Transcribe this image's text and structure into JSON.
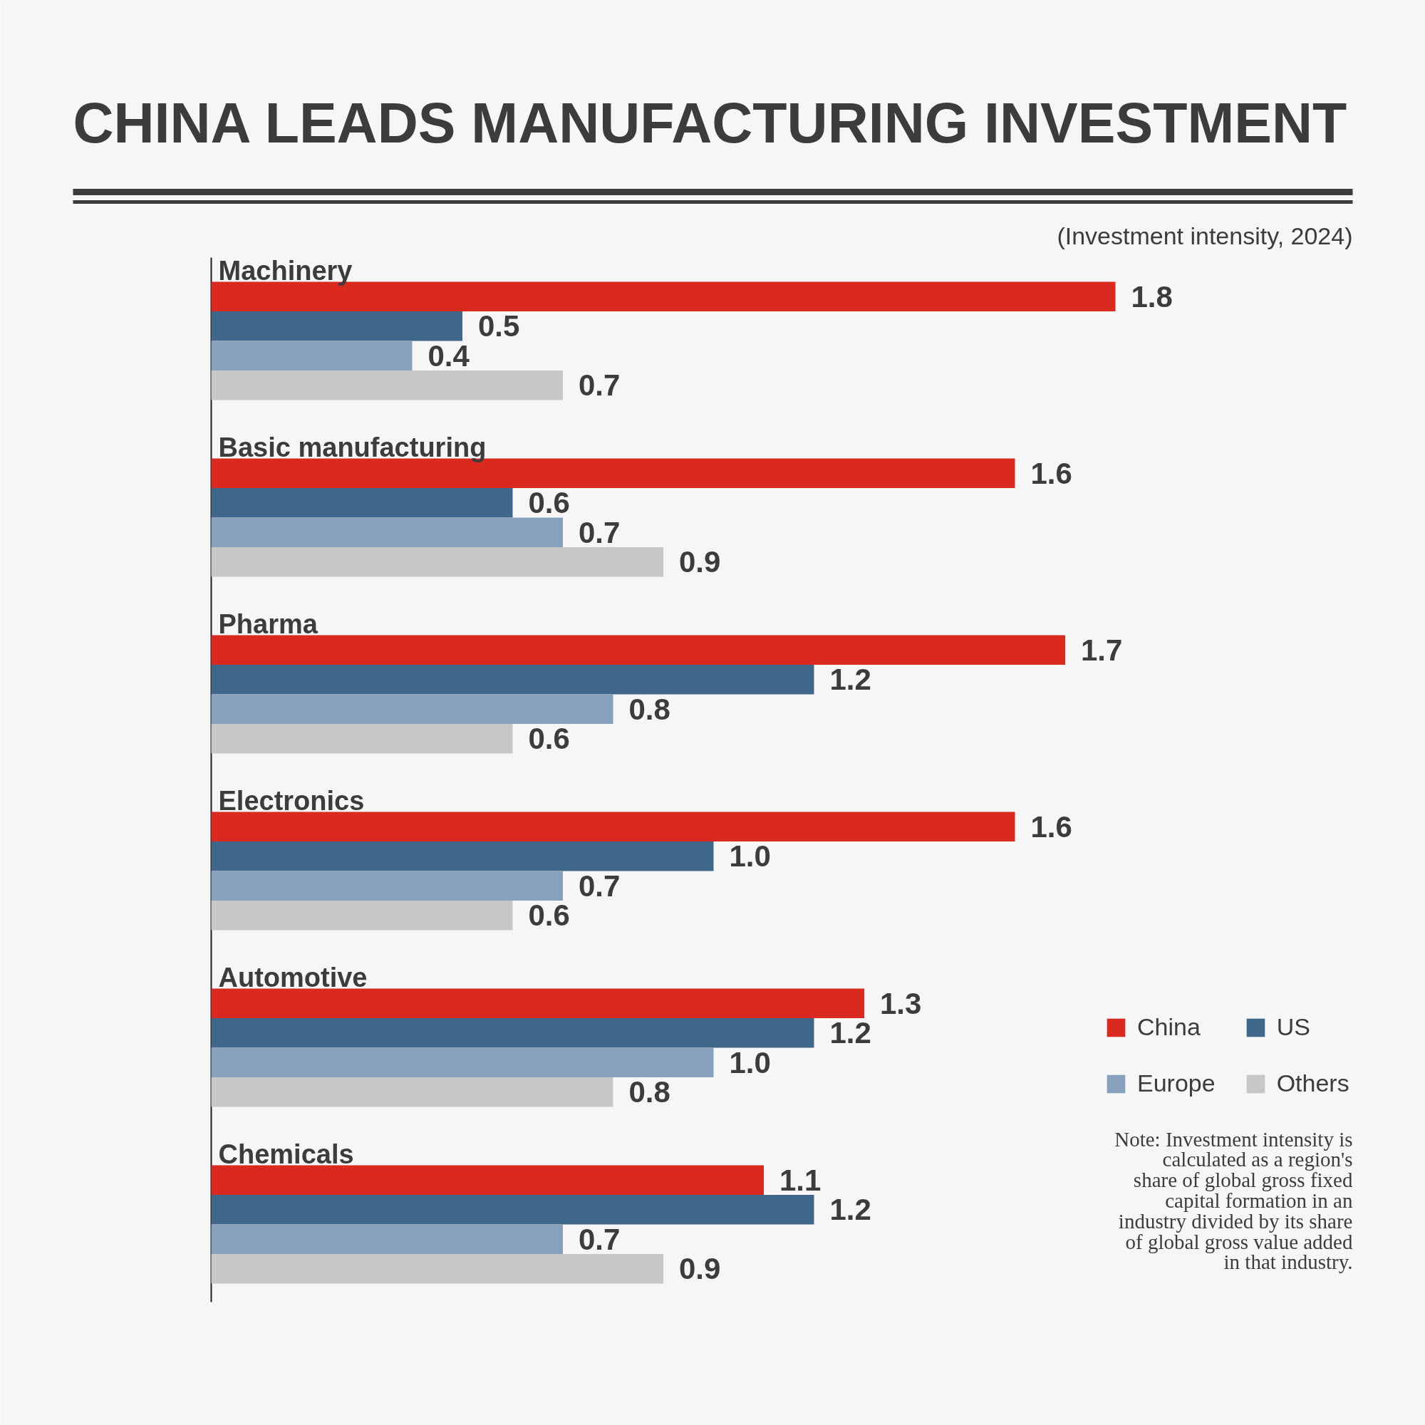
{
  "chart_data": {
    "type": "bar",
    "orientation": "horizontal",
    "title": "CHINA LEADS MANUFACTURING INVESTMENT",
    "subtitle": "(Investment intensity, 2024)",
    "categories": [
      "Machinery",
      "Basic manufacturing",
      "Pharma",
      "Electronics",
      "Automotive",
      "Chemicals"
    ],
    "series": [
      {
        "name": "China",
        "color": "#da291f",
        "values": [
          1.8,
          1.6,
          1.7,
          1.6,
          1.3,
          1.1
        ],
        "value_labels": [
          "1.8",
          "1.6",
          "1.7",
          "1.6",
          "1.3",
          "1.1"
        ]
      },
      {
        "name": "US",
        "color": "#3e6789",
        "values": [
          0.5,
          0.6,
          1.2,
          1.0,
          1.2,
          1.2
        ],
        "value_labels": [
          "0.5",
          "0.6",
          "1.2",
          "1.0",
          "1.2",
          "1.2"
        ]
      },
      {
        "name": "Europe",
        "color": "#87a1bc",
        "values": [
          0.4,
          0.7,
          0.8,
          0.7,
          1.0,
          0.7
        ],
        "value_labels": [
          "0.4",
          "0.7",
          "0.8",
          "0.7",
          "1.0",
          "0.7"
        ]
      },
      {
        "name": "Others",
        "color": "#c6c7c9",
        "values": [
          0.7,
          0.9,
          0.6,
          0.6,
          0.8,
          0.9
        ],
        "value_labels": [
          "0.7",
          "0.9",
          "0.6",
          "0.6",
          "0.8",
          "0.9"
        ]
      }
    ],
    "legend": "bottom right",
    "annotations": [
      "Note: Investment intensity is calculated as a region's share of global gross fixed capital formation in an industry divided by its share of global gross value added in that industry."
    ]
  }
}
